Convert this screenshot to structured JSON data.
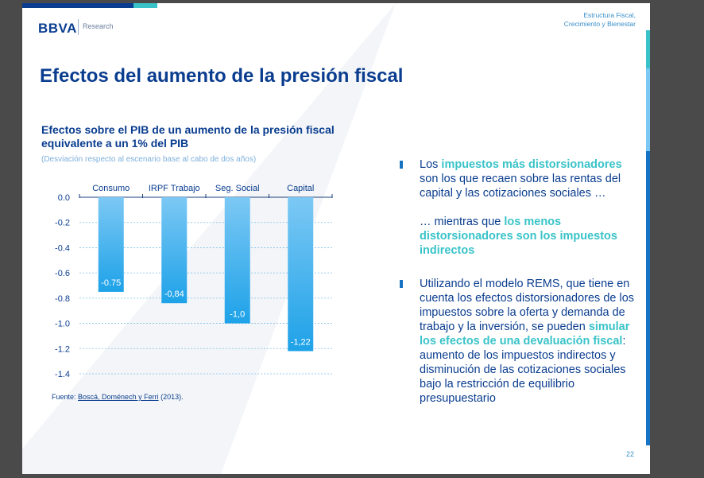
{
  "header": {
    "logo_text": "BBVA",
    "logo_subtitle": "Research",
    "doc_title_line1": "Estructura Fiscal,",
    "doc_title_line2": "Crecimiento y Bienestar"
  },
  "slide": {
    "title": "Efectos del aumento de la presión fiscal",
    "page_number": "22"
  },
  "chart_section": {
    "title": "Efectos sobre el PIB de un aumento de la presión fiscal equivalente a un 1% del PIB",
    "subtitle": "(Desviación respecto al escenario base al cabo de dos años)",
    "source_prefix": "Fuente: ",
    "source_link": "Boscá, Doménech y Ferri",
    "source_suffix": " (2013)."
  },
  "chart_data": {
    "type": "bar",
    "categories": [
      "Consumo",
      "IRPF Trabajo",
      "Seg. Social",
      "Capital"
    ],
    "values": [
      -0.75,
      -0.84,
      -1.0,
      -1.22
    ],
    "value_labels": [
      "-0.75",
      "-0,84",
      "-1,0",
      "-1,22"
    ],
    "ylim": [
      -1.4,
      0.0
    ],
    "yticks": [
      "0.0",
      "-0.2",
      "-0.4",
      "-0.6",
      "-0.8",
      "-1.0",
      "-1.2",
      "-1.4"
    ],
    "grid": true,
    "x_axis_position": "top",
    "bar_color_top": "#7cc8f4",
    "bar_color_bottom": "#1ea2e8"
  },
  "bullets": {
    "b1_pre": "Los ",
    "b1_hl": "impuestos más distorsionadores",
    "b1_post": " son los que recaen sobre las rentas del capital y las cotizaciones sociales …",
    "b1_cont_pre": "… mientras que ",
    "b1_cont_hl": "los menos distorsionadores son los impuestos indirectos",
    "b2_pre": "Utilizando el modelo REMS, que tiene en cuenta los efectos distorsionadores de los impuestos sobre la oferta y demanda de trabajo y la inversión, se pueden ",
    "b2_hl": "simular los efectos de una devaluación fiscal",
    "b2_post": ": aumento de los impuestos indirectos y disminución de las cotizaciones sociales bajo la restricción de equilibrio presupuestario"
  },
  "colors": {
    "brand_navy": "#0a3d8f",
    "accent_teal": "#39c3c8",
    "accent_blue": "#1673c4"
  }
}
